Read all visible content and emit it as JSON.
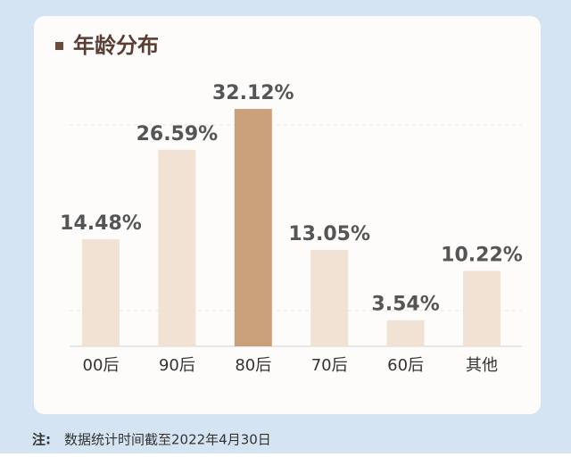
{
  "chart_data": {
    "type": "bar",
    "title": "年龄分布",
    "categories": [
      "00后",
      "90后",
      "80后",
      "70后",
      "60后",
      "其他"
    ],
    "values": [
      14.48,
      26.59,
      32.12,
      13.05,
      3.54,
      10.22
    ],
    "value_labels": [
      "14.48%",
      "26.59%",
      "32.12%",
      "13.05%",
      "3.54%",
      "10.22%"
    ],
    "colors": [
      "#f1e2d3",
      "#f1e2d3",
      "#c9a079",
      "#f1e2d3",
      "#f1e2d3",
      "#f1e2d3"
    ],
    "note_label": "注:",
    "note": "数据统计时间截至2022年4月30日"
  }
}
